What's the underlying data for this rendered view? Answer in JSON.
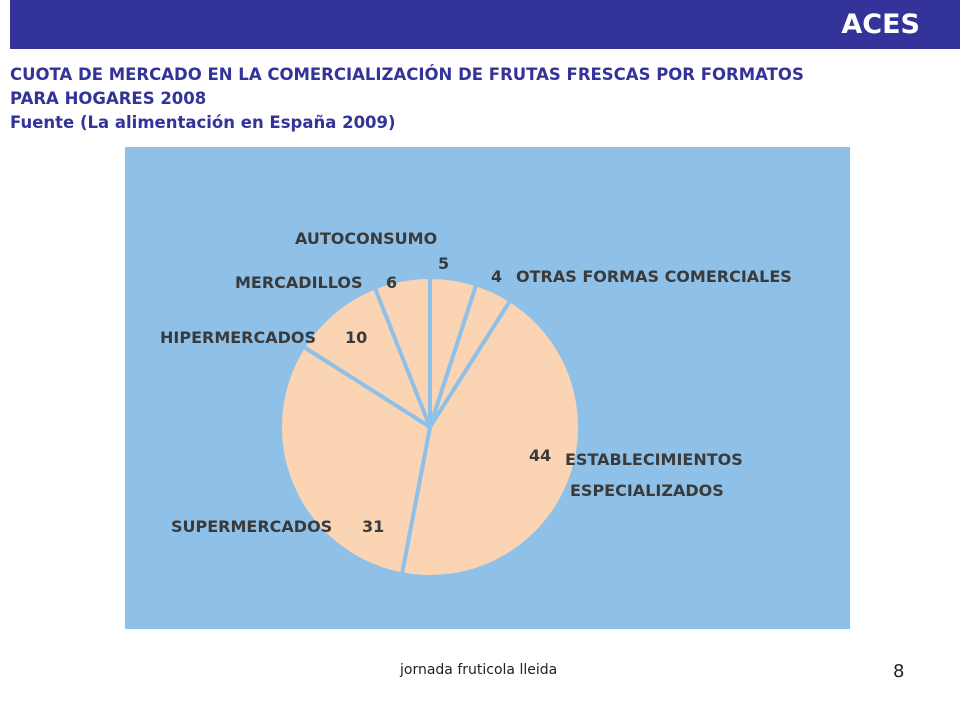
{
  "header": {
    "brand": "ACES"
  },
  "slide": {
    "title_line1": "CUOTA DE MERCADO EN LA COMERCIALIZACIÓN  DE FRUTAS FRESCAS POR FORMATOS",
    "title_line2": "PARA HOGARES 2008",
    "source": "Fuente (La alimentación en España 2009)"
  },
  "colors": {
    "header_bar": "#333399",
    "title_text": "#333399",
    "panel_bg": "#8fc1e8",
    "slice_fill": "#fbd4b4",
    "label_text": "#3a3a3a"
  },
  "chart_data": {
    "type": "pie",
    "title": "",
    "slices": [
      {
        "label": "AUTOCONSUMO",
        "value": 5,
        "value_text": "5"
      },
      {
        "label": "OTRAS FORMAS COMERCIALES",
        "value": 4,
        "value_text": "4"
      },
      {
        "label_lines": [
          "ESTABLECIMIENTOS",
          "ESPECIALIZADOS"
        ],
        "value": 44,
        "value_text": "44"
      },
      {
        "label": "SUPERMERCADOS",
        "value": 31,
        "value_text": "31"
      },
      {
        "label": "HIPERMERCADOS",
        "value": 10,
        "value_text": "10"
      },
      {
        "label": "MERCADILLOS",
        "value": 6,
        "value_text": "6"
      }
    ]
  },
  "footer": {
    "text": "jornada fruticola lleida",
    "page": "8"
  }
}
